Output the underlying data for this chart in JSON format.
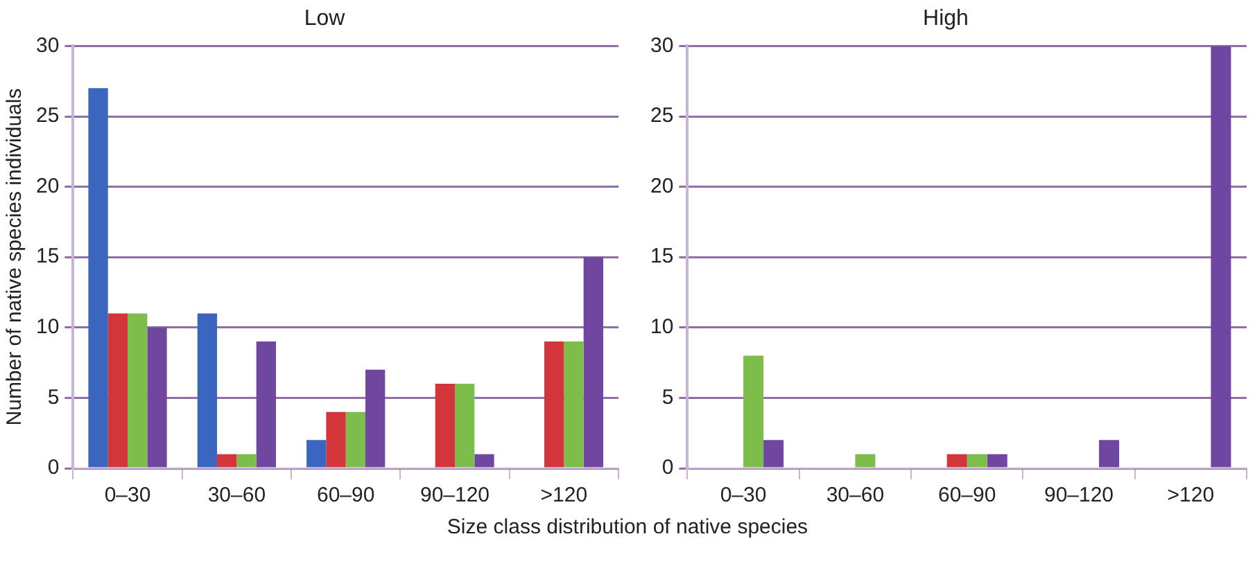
{
  "chart_data": [
    {
      "type": "bar",
      "title": "Low",
      "ylabel": "Number of native species individuals",
      "xlabel": "Size class distribution of native species",
      "categories": [
        "0–30",
        "30–60",
        "60–90",
        "90–120",
        ">120"
      ],
      "series": [
        {
          "color": "#3a66c0",
          "values": [
            27,
            11,
            2,
            0,
            0
          ]
        },
        {
          "color": "#d2363b",
          "values": [
            11,
            1,
            4,
            6,
            9
          ]
        },
        {
          "color": "#7cbd4c",
          "values": [
            11,
            1,
            4,
            6,
            9
          ]
        },
        {
          "color": "#6f47a0",
          "values": [
            10,
            9,
            7,
            1,
            15
          ]
        }
      ],
      "ylim": [
        0,
        30
      ],
      "yticks": [
        0,
        5,
        10,
        15,
        20,
        25,
        30
      ],
      "grid": "y",
      "legend": false
    },
    {
      "type": "bar",
      "title": "High",
      "categories": [
        "0–30",
        "30–60",
        "60–90",
        "90–120",
        ">120"
      ],
      "series": [
        {
          "color": "#3a66c0",
          "values": [
            0,
            0,
            0,
            0,
            0
          ]
        },
        {
          "color": "#d2363b",
          "values": [
            0,
            0,
            1,
            0,
            0
          ]
        },
        {
          "color": "#7cbd4c",
          "values": [
            8,
            1,
            1,
            0,
            0
          ]
        },
        {
          "color": "#6f47a0",
          "values": [
            2,
            0,
            1,
            2,
            30
          ]
        }
      ],
      "ylim": [
        0,
        30
      ],
      "yticks": [
        0,
        5,
        10,
        15,
        20,
        25,
        30
      ],
      "grid": "y",
      "legend": false
    }
  ]
}
